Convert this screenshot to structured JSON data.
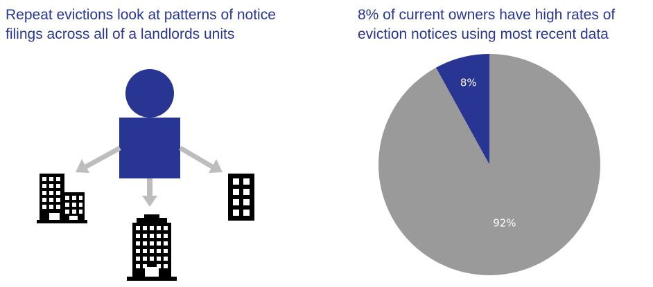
{
  "left_panel": {
    "title_line1": "Repeat evictions look at patterns of notice",
    "title_line2": "filings across all of a landlords units"
  },
  "right_panel": {
    "title_line1": "8% of current owners have high rates of",
    "title_line2": "eviction notices using most recent data"
  },
  "icons": {
    "owner": "person-icon",
    "buildings": [
      "building-icon",
      "building-icon",
      "building-icon"
    ],
    "arrows": [
      "arrow-icon",
      "arrow-icon",
      "arrow-icon"
    ]
  },
  "colors": {
    "accent": "#283593",
    "pie_main": "#9a9a9a",
    "arrow": "#bdbdbd",
    "building": "#000000"
  },
  "chart_data": {
    "type": "pie",
    "title": "8% of current owners have high rates of eviction notices using most recent data",
    "slices": [
      {
        "label": "8%",
        "value": 8,
        "color": "#283593",
        "label_color": "#ffffff"
      },
      {
        "label": "92%",
        "value": 92,
        "color": "#9a9a9a",
        "label_color": "#ffffff"
      }
    ],
    "start_angle_deg": 0,
    "direction": "counterclockwise"
  }
}
